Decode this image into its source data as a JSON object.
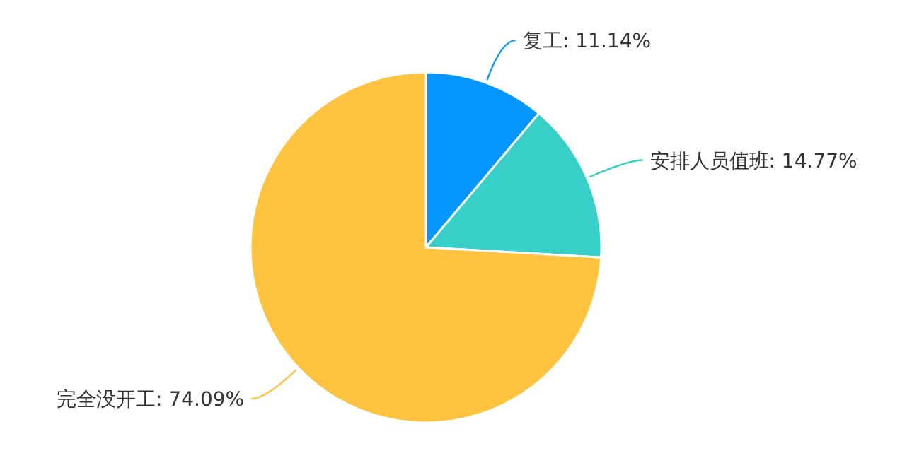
{
  "chart_data": {
    "type": "pie",
    "categories": [
      "复工",
      "安排人员值班",
      "完全没开工"
    ],
    "values": [
      11.14,
      14.77,
      74.09
    ],
    "value_labels": [
      "11.14%",
      "14.77%",
      "74.09%"
    ],
    "colors": [
      "#0696ff",
      "#38cfc8",
      "#ffc33f"
    ]
  }
}
